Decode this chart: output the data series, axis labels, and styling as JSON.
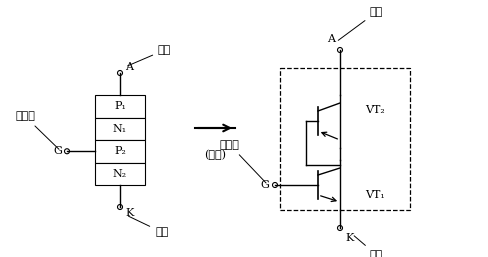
{
  "bg_color": "#ffffff",
  "layers": [
    "P₁",
    "N₁",
    "P₂",
    "N₂"
  ],
  "label_yangji_left": "阳极",
  "label_yinji_left": "阴极",
  "label_kongzhiji": "控制极",
  "label_A": "A",
  "label_G": "G",
  "label_K": "K",
  "arrow_text": "⇒",
  "equiv_text": "(等效)",
  "label_VT1": "VT₁",
  "label_VT2": "VT₂",
  "label_yangji_right": "阳极",
  "label_yinji_right": "阴极",
  "font_size_label": 8,
  "font_size_layer": 8
}
